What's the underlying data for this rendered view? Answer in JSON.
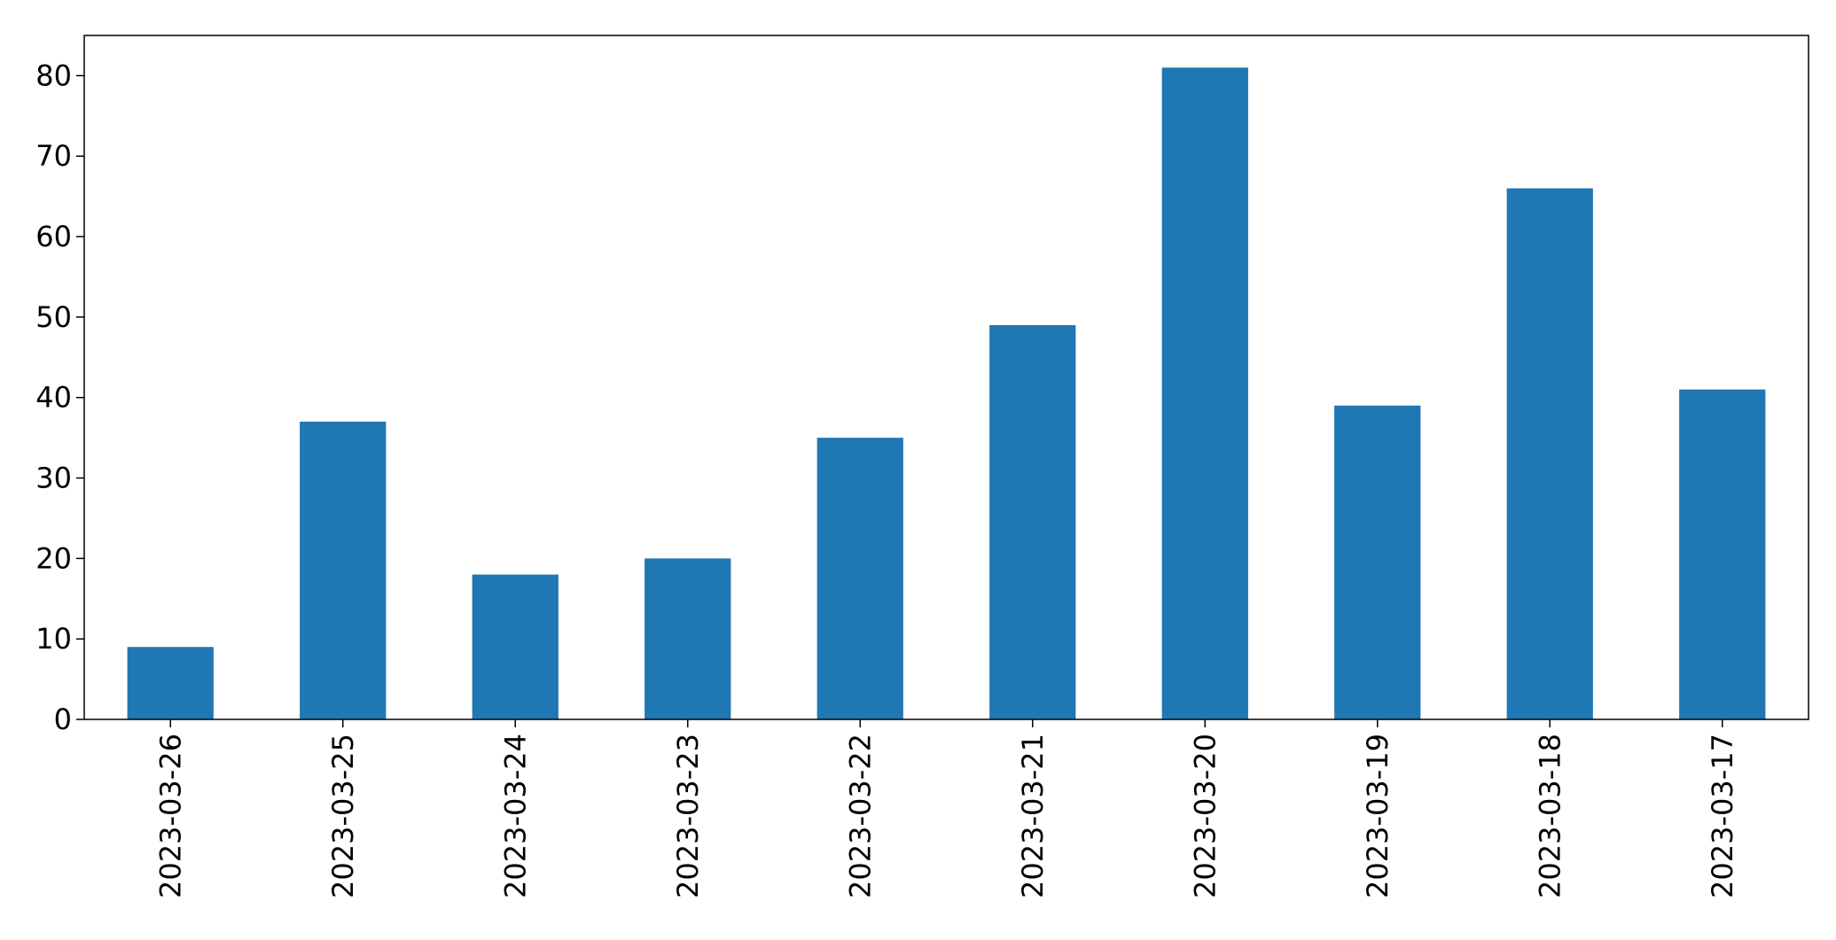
{
  "chart_data": {
    "type": "bar",
    "categories": [
      "2023-03-26",
      "2023-03-25",
      "2023-03-24",
      "2023-03-23",
      "2023-03-22",
      "2023-03-21",
      "2023-03-20",
      "2023-03-19",
      "2023-03-18",
      "2023-03-17"
    ],
    "values": [
      9,
      37,
      18,
      20,
      35,
      49,
      81,
      39,
      66,
      41
    ],
    "title": "",
    "xlabel": "",
    "ylabel": "",
    "ylim": [
      0,
      85
    ],
    "yticks": [
      0,
      10,
      20,
      30,
      40,
      50,
      60,
      70,
      80
    ],
    "grid": false,
    "legend": "none",
    "bar_color": "#1f77b4",
    "x_tick_rotation": "vertical"
  }
}
